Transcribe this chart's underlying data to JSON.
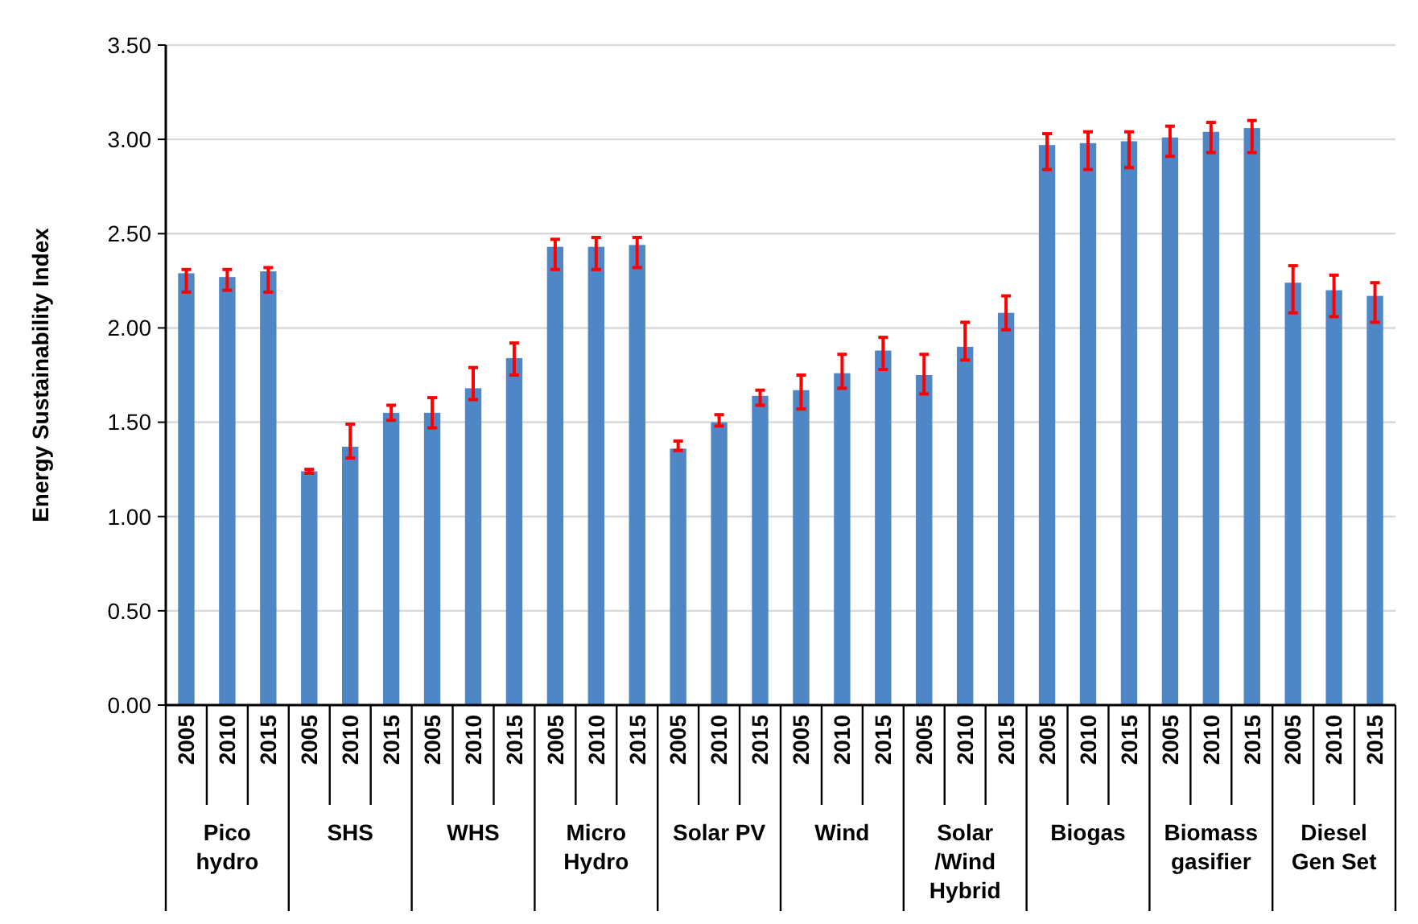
{
  "chart_data": {
    "type": "bar",
    "ylabel": "Energy Sustainability Index",
    "categories": [
      "2005",
      "2010",
      "2015",
      "2005",
      "2010",
      "2015",
      "2005",
      "2010",
      "2015",
      "2005",
      "2010",
      "2015",
      "2005",
      "2010",
      "2015",
      "2005",
      "2010",
      "2015",
      "2005",
      "2010",
      "2015",
      "2005",
      "2010",
      "2015",
      "2005",
      "2010",
      "2015",
      "2005",
      "2010",
      "2015"
    ],
    "annotations": [
      "Pico hydro",
      "SHS",
      "WHS",
      "Micro Hydro",
      "Solar PV",
      "Wind",
      "Solar /Wind Hybrid",
      "Biogas",
      "Biomass gasifier",
      "Diesel Gen Set"
    ],
    "values": [
      2.29,
      2.27,
      2.3,
      1.24,
      1.37,
      1.55,
      1.55,
      1.68,
      1.84,
      2.43,
      2.43,
      2.44,
      1.36,
      1.5,
      1.64,
      1.67,
      1.76,
      1.88,
      1.75,
      1.9,
      2.08,
      2.97,
      2.98,
      2.99,
      3.01,
      3.04,
      3.06,
      2.24,
      2.2,
      2.17
    ],
    "errors": [
      [
        2.19,
        2.31
      ],
      [
        2.2,
        2.31
      ],
      [
        2.19,
        2.32
      ],
      [
        1.23,
        1.25
      ],
      [
        1.31,
        1.49
      ],
      [
        1.51,
        1.59
      ],
      [
        1.47,
        1.63
      ],
      [
        1.62,
        1.79
      ],
      [
        1.75,
        1.92
      ],
      [
        2.31,
        2.47
      ],
      [
        2.31,
        2.48
      ],
      [
        2.32,
        2.48
      ],
      [
        1.35,
        1.4
      ],
      [
        1.48,
        1.54
      ],
      [
        1.59,
        1.67
      ],
      [
        1.57,
        1.75
      ],
      [
        1.68,
        1.86
      ],
      [
        1.78,
        1.95
      ],
      [
        1.65,
        1.86
      ],
      [
        1.83,
        2.03
      ],
      [
        1.99,
        2.17
      ],
      [
        2.84,
        3.03
      ],
      [
        2.84,
        3.04
      ],
      [
        2.85,
        3.04
      ],
      [
        2.91,
        3.07
      ],
      [
        2.93,
        3.09
      ],
      [
        2.93,
        3.1
      ],
      [
        2.08,
        2.33
      ],
      [
        2.06,
        2.28
      ],
      [
        2.03,
        2.24
      ]
    ],
    "color": "#4f86c6",
    "ylim": [
      0,
      3.5
    ],
    "yticks": [
      {
        "value": 0,
        "label": "0.00"
      },
      {
        "value": 0.5,
        "label": "0.50"
      },
      {
        "value": 1,
        "label": "1.00"
      },
      {
        "value": 1.5,
        "label": "1.50"
      },
      {
        "value": 2,
        "label": "2.00"
      },
      {
        "value": 2.5,
        "label": "2.50"
      },
      {
        "value": 3,
        "label": "3.00"
      },
      {
        "value": 3.5,
        "label": "3.50"
      }
    ],
    "grid": "y"
  }
}
